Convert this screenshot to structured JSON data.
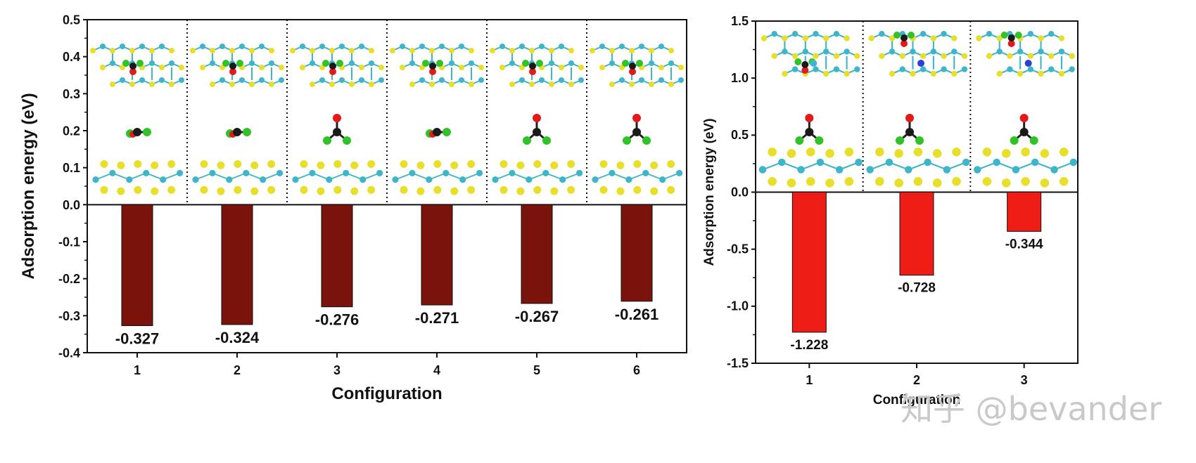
{
  "watermark": "知乎 @bevander",
  "chart_data": [
    {
      "type": "bar",
      "categories": [
        "1",
        "2",
        "3",
        "4",
        "5",
        "6"
      ],
      "values": [
        -0.327,
        -0.324,
        -0.276,
        -0.271,
        -0.267,
        -0.261
      ],
      "data_labels": [
        "-0.327",
        "-0.324",
        "-0.276",
        "-0.271",
        "-0.267",
        "-0.261"
      ],
      "yticks": [
        "0.5",
        "0.4",
        "0.3",
        "0.2",
        "0.1",
        "0.0",
        "-0.1",
        "-0.2",
        "-0.3",
        "-0.4"
      ],
      "xlabel": "Configuration",
      "ylabel": "Adsorption energy (eV)",
      "ylim": [
        -0.4,
        0.5
      ],
      "bar_color": "#7b130d",
      "panel_separators": "dotted"
    },
    {
      "type": "bar",
      "categories": [
        "1",
        "2",
        "3"
      ],
      "values": [
        -1.228,
        -0.728,
        -0.344
      ],
      "data_labels": [
        "-1.228",
        "-0.728",
        "-0.344"
      ],
      "yticks": [
        "1.5",
        "1.0",
        "0.5",
        "0.0",
        "-0.5",
        "-1.0",
        "-1.5"
      ],
      "xlabel": "Configuration",
      "ylabel": "Adsorption energy (eV)",
      "ylim": [
        -1.5,
        1.5
      ],
      "bar_color": "#ee1d16",
      "panel_separators": "dotted"
    }
  ]
}
